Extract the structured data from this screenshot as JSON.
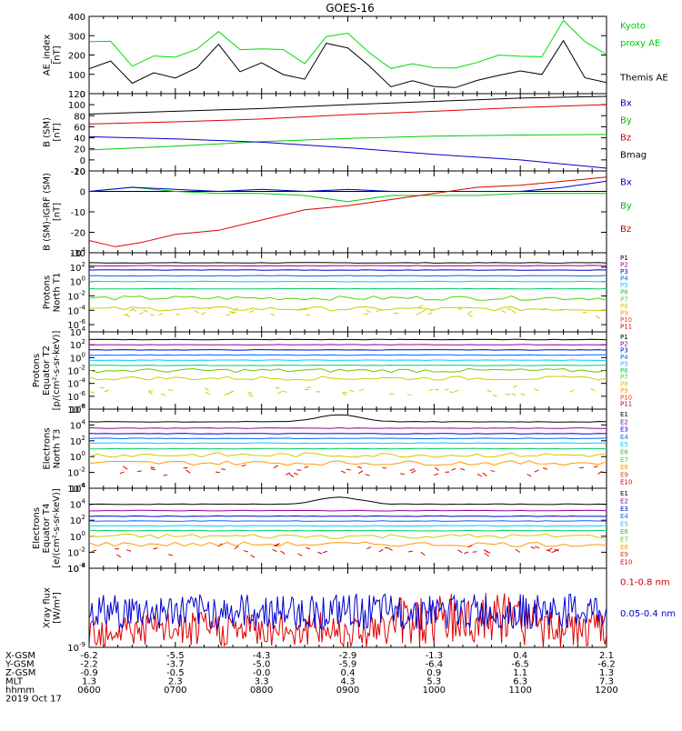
{
  "chart_data": {
    "type": "line",
    "title": "GOES-16",
    "x_tick_labels": [
      "0600",
      "0700",
      "0800",
      "0900",
      "1000",
      "1100",
      "1200"
    ],
    "x_label": "hhmm",
    "date_label": "2019 Oct 17",
    "orbit_table": {
      "rows": [
        {
          "label": "X-GSM",
          "values": [
            "-6.2",
            "-5.5",
            "-4.3",
            "-2.9",
            "-1.3",
            "0.4",
            "2.1"
          ]
        },
        {
          "label": "Y-GSM",
          "values": [
            "-2.2",
            "-3.7",
            "-5.0",
            "-5.9",
            "-6.4",
            "-6.5",
            "-6.2"
          ]
        },
        {
          "label": "Z-GSM",
          "values": [
            "-0.9",
            "-0.5",
            "-0.0",
            "0.4",
            "0.9",
            "1.1",
            "1.3"
          ]
        },
        {
          "label": "MLT",
          "values": [
            "1.3",
            "2.3",
            "3.3",
            "4.3",
            "5.3",
            "6.3",
            "7.3"
          ]
        }
      ]
    },
    "panels": [
      {
        "id": "ae",
        "ylabel": [
          "AE_index",
          "[nT]"
        ],
        "scale": "linear",
        "ylim": [
          0,
          400
        ],
        "ticks": [
          0,
          100,
          200,
          300,
          400
        ],
        "tick_labels": [
          "0",
          "100",
          "200",
          "300",
          "400"
        ],
        "legend": [
          {
            "text": "Kyoto",
            "color": "#00cc00"
          },
          {
            "text": "proxy AE",
            "color": "#00cc00"
          },
          {
            "text": "",
            "color": "#000000"
          },
          {
            "text": "Themis AE",
            "color": "#000000"
          }
        ],
        "series": [
          {
            "color": "#00dd00",
            "x": [
              6.0,
              6.25,
              6.5,
              6.75,
              7.0,
              7.25,
              7.5,
              7.75,
              8.0,
              8.25,
              8.5,
              8.75,
              9.0,
              9.25,
              9.5,
              9.75,
              10.0,
              10.25,
              10.5,
              10.75,
              11.0,
              11.25,
              11.5,
              11.75,
              12.0
            ],
            "y": [
              270,
              270,
              150,
              200,
              190,
              230,
              330,
              220,
              230,
              230,
              160,
              290,
              310,
              220,
              130,
              160,
              130,
              140,
              160,
              200,
              200,
              200,
              370,
              260,
              210
            ]
          },
          {
            "color": "#000000",
            "x": [
              6.0,
              6.25,
              6.5,
              6.75,
              7.0,
              7.25,
              7.5,
              7.75,
              8.0,
              8.25,
              8.5,
              8.75,
              9.0,
              9.25,
              9.5,
              9.75,
              10.0,
              10.25,
              10.5,
              10.75,
              11.0,
              11.25,
              11.5,
              11.75,
              12.0
            ],
            "y": [
              130,
              160,
              60,
              110,
              80,
              130,
              260,
              120,
              150,
              100,
              80,
              260,
              240,
              150,
              30,
              70,
              40,
              40,
              60,
              100,
              110,
              100,
              280,
              80,
              60
            ]
          }
        ]
      },
      {
        "id": "bsm",
        "ylabel": [
          "B (SM)",
          "[nT]"
        ],
        "scale": "linear",
        "ylim": [
          -20,
          120
        ],
        "ticks": [
          -20,
          0,
          20,
          40,
          60,
          80,
          100,
          120
        ],
        "tick_labels": [
          "-20",
          "0",
          "20",
          "40",
          "60",
          "80",
          "100",
          "120"
        ],
        "legend": [
          {
            "text": "Bx",
            "color": "#0000cc"
          },
          {
            "text": "By",
            "color": "#00bb00"
          },
          {
            "text": "Bz",
            "color": "#cc0000"
          },
          {
            "text": "Bmag",
            "color": "#000000"
          }
        ],
        "series": [
          {
            "color": "#000000",
            "x": [
              6,
              7,
              8,
              9,
              10,
              11,
              12
            ],
            "y": [
              83,
              88,
              93,
              100,
              106,
              112,
              115
            ]
          },
          {
            "color": "#dd0000",
            "x": [
              6,
              7,
              8,
              9,
              10,
              11,
              12
            ],
            "y": [
              65,
              69,
              74,
              82,
              88,
              95,
              100
            ]
          },
          {
            "color": "#00cc00",
            "x": [
              6,
              7,
              8,
              9,
              10,
              11,
              12
            ],
            "y": [
              18,
              25,
              33,
              39,
              43,
              45,
              46
            ]
          },
          {
            "color": "#0000cc",
            "x": [
              6,
              7,
              8,
              9,
              10,
              11,
              12
            ],
            "y": [
              42,
              38,
              32,
              22,
              10,
              0,
              -15
            ]
          }
        ]
      },
      {
        "id": "bdiff",
        "ylabel": [
          "B (SM)-IGRF (SM)",
          "[nT]"
        ],
        "scale": "linear",
        "ylim": [
          -30,
          10
        ],
        "ticks": [
          -30,
          -20,
          -10,
          0,
          10
        ],
        "tick_labels": [
          "-30",
          "-20",
          "-10",
          "0",
          "10"
        ],
        "legend": [
          {
            "text": "Bx",
            "color": "#0000cc"
          },
          {
            "text": "By",
            "color": "#00bb00"
          },
          {
            "text": "Bz",
            "color": "#cc0000"
          }
        ],
        "series": [
          {
            "color": "#000000",
            "x": [
              6,
              12
            ],
            "y": [
              0,
              0
            ]
          },
          {
            "color": "#00cc00",
            "x": [
              6,
              6.5,
              7,
              7.5,
              8,
              8.5,
              9,
              9.5,
              10,
              10.5,
              11,
              11.5,
              12
            ],
            "y": [
              0,
              2,
              0,
              -1,
              -1,
              -2,
              -5,
              -2,
              -2,
              -2,
              -1,
              -1,
              -1
            ]
          },
          {
            "color": "#0000cc",
            "x": [
              6,
              6.5,
              7,
              7.5,
              8,
              8.5,
              9,
              9.5,
              10,
              10.5,
              11,
              11.5,
              12
            ],
            "y": [
              0,
              2,
              1,
              0,
              1,
              0,
              1,
              0,
              0,
              0,
              0,
              2,
              5
            ]
          },
          {
            "color": "#dd0000",
            "x": [
              6,
              6.3,
              6.6,
              7,
              7.5,
              8,
              8.5,
              9,
              9.5,
              10,
              10.5,
              11,
              11.5,
              12
            ],
            "y": [
              -24,
              -27,
              -25,
              -21,
              -19,
              -14,
              -9,
              -7,
              -4,
              -1,
              2,
              3,
              5,
              7
            ]
          }
        ]
      },
      {
        "id": "p_north",
        "ylabel": [
          "Protons",
          "North T1"
        ],
        "scale": "log",
        "ylim": [
          -7,
          4
        ],
        "ticks": [
          -6,
          -4,
          -2,
          0,
          2,
          4
        ],
        "tick_labels": [
          "10^-6",
          "10^-4",
          "10^-2",
          "10^0",
          "10^2",
          "10^4"
        ],
        "legend": [
          {
            "text": "P1",
            "color": "#000000"
          },
          {
            "text": "P2",
            "color": "#990099"
          },
          {
            "text": "P3",
            "color": "#0000cc"
          },
          {
            "text": "P4",
            "color": "#0066ff"
          },
          {
            "text": "P5",
            "color": "#00ccff"
          },
          {
            "text": "P6",
            "color": "#00cc66"
          },
          {
            "text": "P7",
            "color": "#66cc00"
          },
          {
            "text": "P8",
            "color": "#cccc00"
          },
          {
            "text": "P9",
            "color": "#ff9900"
          },
          {
            "text": "P10",
            "color": "#ff3300"
          },
          {
            "text": "P11",
            "color": "#cc0000"
          }
        ],
        "levels": [
          2.6,
          2.2,
          1.6,
          0.8,
          0.0,
          -1.0,
          -2.3,
          -3.8
        ],
        "level_colors": [
          "#000000",
          "#990099",
          "#0000cc",
          "#0066ff",
          "#00ccff",
          "#00cc66",
          "#66cc00",
          "#cccc00"
        ]
      },
      {
        "id": "p_equator",
        "ylabel": [
          "Protons",
          "Equator T2",
          "[p/(cm²-s-sr-keV)]"
        ],
        "scale": "log",
        "ylim": [
          -8,
          4
        ],
        "ticks": [
          -8,
          -6,
          -4,
          -2,
          0,
          2,
          4
        ],
        "tick_labels": [
          "10^-8",
          "10^-6",
          "10^-4",
          "10^-2",
          "10^0",
          "10^2",
          "10^4"
        ],
        "legend": [
          {
            "text": "P1",
            "color": "#000000"
          },
          {
            "text": "P2",
            "color": "#990099"
          },
          {
            "text": "P3",
            "color": "#0000cc"
          },
          {
            "text": "P4",
            "color": "#0066ff"
          },
          {
            "text": "P5",
            "color": "#00ccff"
          },
          {
            "text": "P6",
            "color": "#00cc66"
          },
          {
            "text": "P7",
            "color": "#66cc00"
          },
          {
            "text": "P8",
            "color": "#cccc00"
          },
          {
            "text": "P9",
            "color": "#ff9900"
          },
          {
            "text": "P10",
            "color": "#ff3300"
          },
          {
            "text": "P11",
            "color": "#cc0000"
          }
        ],
        "levels": [
          2.8,
          2.0,
          1.2,
          0.4,
          -0.4,
          -1.2,
          -2.0,
          -3.2
        ],
        "level_colors": [
          "#000000",
          "#990099",
          "#0000cc",
          "#0066ff",
          "#00ccff",
          "#00cc66",
          "#66cc00",
          "#cccc00"
        ]
      },
      {
        "id": "e_north",
        "ylabel": [
          "Electrons",
          "North T3"
        ],
        "scale": "log",
        "ylim": [
          -4,
          6
        ],
        "ticks": [
          -4,
          -2,
          0,
          2,
          4,
          6
        ],
        "tick_labels": [
          "10^-4",
          "10^-2",
          "10^0",
          "10^2",
          "10^4",
          "10^6"
        ],
        "legend": [
          {
            "text": "E1",
            "color": "#000000"
          },
          {
            "text": "E2",
            "color": "#990099"
          },
          {
            "text": "E3",
            "color": "#0000cc"
          },
          {
            "text": "E4",
            "color": "#0066ff"
          },
          {
            "text": "E5",
            "color": "#00ccff"
          },
          {
            "text": "E6",
            "color": "#00cc66"
          },
          {
            "text": "E7",
            "color": "#66cc00"
          },
          {
            "text": "E8",
            "color": "#ff9900"
          },
          {
            "text": "E9",
            "color": "#ff3300"
          },
          {
            "text": "E10",
            "color": "#cc0000"
          }
        ],
        "levels": [
          4.4,
          3.6,
          2.9,
          2.3,
          1.7,
          1.0,
          0.2,
          -0.8
        ],
        "level_colors": [
          "#000000",
          "#990099",
          "#0000cc",
          "#0066ff",
          "#00ccff",
          "#00cc66",
          "#cccc00",
          "#ff9900"
        ]
      },
      {
        "id": "e_equator",
        "ylabel": [
          "Electrons",
          "Equator T4",
          "[e/(cm²-s-sr-keV)]"
        ],
        "scale": "log",
        "ylim": [
          -4,
          6
        ],
        "ticks": [
          -4,
          -2,
          0,
          2,
          4,
          6
        ],
        "tick_labels": [
          "10^-4",
          "10^-2",
          "10^0",
          "10^2",
          "10^4",
          "10^6"
        ],
        "legend": [
          {
            "text": "E1",
            "color": "#000000"
          },
          {
            "text": "E2",
            "color": "#990099"
          },
          {
            "text": "E3",
            "color": "#0000cc"
          },
          {
            "text": "E4",
            "color": "#0066ff"
          },
          {
            "text": "E5",
            "color": "#00ccff"
          },
          {
            "text": "E6",
            "color": "#00cc66"
          },
          {
            "text": "E7",
            "color": "#66cc00"
          },
          {
            "text": "E8",
            "color": "#ff9900"
          },
          {
            "text": "E9",
            "color": "#ff3300"
          },
          {
            "text": "E10",
            "color": "#cc0000"
          }
        ],
        "levels": [
          4.0,
          3.2,
          2.5,
          1.9,
          1.3,
          0.7,
          0.0,
          -1.0
        ],
        "level_colors": [
          "#000000",
          "#990099",
          "#0000cc",
          "#0066ff",
          "#00ccff",
          "#00cc66",
          "#cccc00",
          "#ff9900"
        ]
      },
      {
        "id": "xray",
        "ylabel": [
          "Xray flux",
          "[W/m²]"
        ],
        "scale": "log",
        "ylim": [
          -9,
          -8
        ],
        "ticks": [
          -9,
          -8
        ],
        "tick_labels": [
          "10^-9",
          "10^-8"
        ],
        "legend": [
          {
            "text": "0.1-0.8 nm",
            "color": "#cc0000"
          },
          {
            "text": "0.05-0.4 nm",
            "color": "#0000cc"
          }
        ]
      }
    ]
  }
}
